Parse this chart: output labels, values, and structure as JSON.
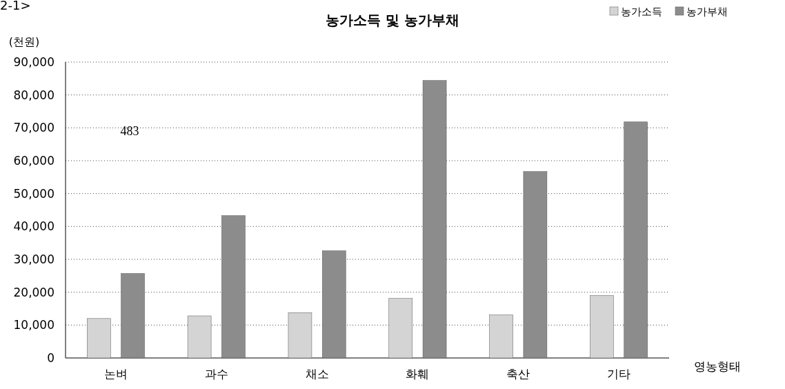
{
  "chart_data": {
    "type": "bar",
    "title": "농가소득 및 농가부채",
    "ylabel": "(천원)",
    "xlabel": "영농형태",
    "categories": [
      "논벼",
      "과수",
      "채소",
      "화훼",
      "축산",
      "기타"
    ],
    "series": [
      {
        "name": "농가소득",
        "color": "#d4d4d4",
        "values": [
          12000,
          12800,
          13800,
          18100,
          13100,
          19000
        ]
      },
      {
        "name": "농가부채",
        "color": "#8c8c8c",
        "values": [
          25700,
          43300,
          32600,
          84400,
          56700,
          71800
        ]
      }
    ],
    "ylim": [
      0,
      90000
    ],
    "yticks": [
      {
        "value": 0,
        "label": "0"
      },
      {
        "value": 10000,
        "label": "10,000"
      },
      {
        "value": 20000,
        "label": "20,000"
      },
      {
        "value": 30000,
        "label": "30,000"
      },
      {
        "value": 40000,
        "label": "40,000"
      },
      {
        "value": 50000,
        "label": "50,000"
      },
      {
        "value": 60000,
        "label": "60,000"
      },
      {
        "value": 70000,
        "label": "70,000"
      },
      {
        "value": 80000,
        "label": "80,000"
      },
      {
        "value": 90000,
        "label": "90,000"
      }
    ],
    "grid": "y",
    "legend": "top right",
    "annotations": [
      "2-1>",
      "483"
    ]
  }
}
